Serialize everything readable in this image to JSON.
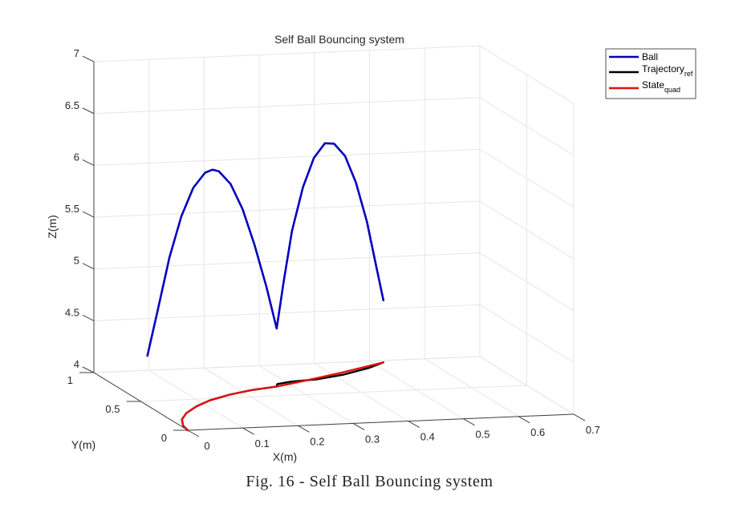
{
  "figure": {
    "caption": "Fig. 16 - Self Ball Bouncing system"
  },
  "chart_data": {
    "type": "line3d",
    "title": "Self Ball Bouncing system",
    "xlabel": "X(m)",
    "ylabel": "Y(m)",
    "zlabel": "Z(m)",
    "xlim": [
      0,
      0.7
    ],
    "ylim": [
      0,
      1
    ],
    "zlim": [
      4,
      7
    ],
    "xticks": [
      "0",
      "0.1",
      "0.2",
      "0.3",
      "0.4",
      "0.5",
      "0.6",
      "0.7"
    ],
    "yticks": [
      "0",
      "0.5",
      "1"
    ],
    "zticks": [
      "4",
      "4.5",
      "5",
      "5.5",
      "6",
      "6.5",
      "7"
    ],
    "grid": true,
    "legend_position": "upper right (outside)",
    "legend": [
      {
        "label": "Ball",
        "sub": "",
        "color": "#0000c0"
      },
      {
        "label": "Trajectory",
        "sub": "ref",
        "color": "#000000"
      },
      {
        "label": "State",
        "sub": "quad",
        "color": "#e01010"
      }
    ],
    "series": [
      {
        "name": "Ball",
        "color": "#0000c0",
        "points_xyz": [
          [
            0.0,
            0.43,
            4.48
          ],
          [
            0.02,
            0.44,
            4.9
          ],
          [
            0.045,
            0.46,
            5.4
          ],
          [
            0.07,
            0.48,
            5.78
          ],
          [
            0.095,
            0.5,
            6.04
          ],
          [
            0.12,
            0.52,
            6.17
          ],
          [
            0.135,
            0.53,
            6.19
          ],
          [
            0.15,
            0.55,
            6.16
          ],
          [
            0.175,
            0.57,
            6.02
          ],
          [
            0.2,
            0.59,
            5.76
          ],
          [
            0.225,
            0.61,
            5.4
          ],
          [
            0.25,
            0.63,
            4.98
          ],
          [
            0.272,
            0.65,
            4.56
          ],
          [
            0.29,
            0.68,
            5.0
          ],
          [
            0.31,
            0.71,
            5.46
          ],
          [
            0.335,
            0.74,
            5.86
          ],
          [
            0.36,
            0.77,
            6.12
          ],
          [
            0.385,
            0.8,
            6.24
          ],
          [
            0.405,
            0.82,
            6.22
          ],
          [
            0.43,
            0.85,
            6.08
          ],
          [
            0.455,
            0.88,
            5.8
          ],
          [
            0.48,
            0.91,
            5.4
          ],
          [
            0.5,
            0.94,
            5.0
          ],
          [
            0.52,
            0.97,
            4.6
          ]
        ]
      },
      {
        "name": "Trajectory_ref",
        "color": "#000000",
        "points_xyz": [
          [
            0.0,
            0.0,
            4.0
          ],
          [
            0.005,
            0.08,
            4.0
          ],
          [
            0.02,
            0.18,
            4.0
          ],
          [
            0.045,
            0.28,
            4.0
          ],
          [
            0.08,
            0.38,
            4.0
          ],
          [
            0.12,
            0.47,
            4.0
          ],
          [
            0.17,
            0.55,
            4.0
          ],
          [
            0.22,
            0.61,
            4.0
          ],
          [
            0.272,
            0.65,
            4.0
          ],
          [
            0.28,
            0.69,
            4.0
          ],
          [
            0.31,
            0.72,
            4.0
          ],
          [
            0.36,
            0.74,
            4.0
          ],
          [
            0.42,
            0.8,
            4.0
          ],
          [
            0.48,
            0.89,
            4.0
          ],
          [
            0.52,
            0.97,
            4.0
          ]
        ]
      },
      {
        "name": "State_quad",
        "color": "#e01010",
        "points_xyz": [
          [
            0.0,
            0.0,
            4.0
          ],
          [
            0.005,
            0.08,
            4.0
          ],
          [
            0.02,
            0.18,
            4.0
          ],
          [
            0.045,
            0.28,
            4.0
          ],
          [
            0.08,
            0.38,
            4.0
          ],
          [
            0.12,
            0.47,
            4.0
          ],
          [
            0.17,
            0.55,
            4.0
          ],
          [
            0.22,
            0.61,
            4.0
          ],
          [
            0.272,
            0.65,
            4.0
          ],
          [
            0.34,
            0.73,
            4.0
          ],
          [
            0.42,
            0.83,
            4.0
          ],
          [
            0.52,
            0.97,
            4.0
          ]
        ]
      }
    ]
  }
}
